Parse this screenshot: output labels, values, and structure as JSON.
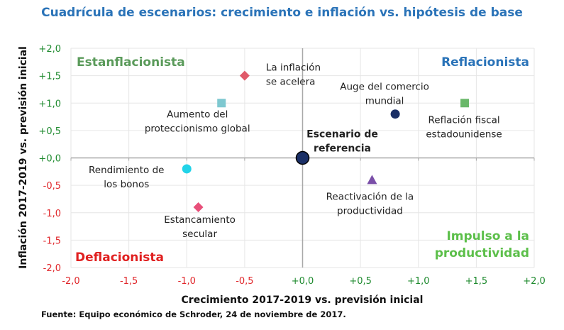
{
  "title": "Cuadrícula de escenarios: crecimiento e inflación vs. hipótesis de base",
  "source": "Fuente: Equipo económico de Schroder, 24 de noviembre de 2017.",
  "colors": {
    "title": "#2a73b8",
    "positive_tick": "#1e8a2e",
    "negative_tick": "#e0262a"
  },
  "chart_data": {
    "type": "scatter",
    "title": "Cuadrícula de escenarios: crecimiento e inflación vs. hipótesis de base",
    "xlabel": "Crecimiento 2017-2019 vs. previsión inicial",
    "ylabel": "Inflación 2017-2019 vs. previsión inicial",
    "xlim": [
      -2,
      2
    ],
    "ylim": [
      -2,
      2
    ],
    "grid": true,
    "xticks": [
      "-2,0",
      "-1,5",
      "-1,0",
      "-0,5",
      "+0,0",
      "+0,5",
      "+1,0",
      "+1,5",
      "+2,0"
    ],
    "yticks": [
      "+2,0",
      "+1,5",
      "+1,0",
      "+0,5",
      "+0,0",
      "-0,5",
      "-1,0",
      "-1,5",
      "-2,0"
    ],
    "quadrants": [
      {
        "label": "Estanflacionista",
        "color": "#5a9a5a",
        "pos": "top-left"
      },
      {
        "label": "Reflacionista",
        "color": "#2a73b8",
        "pos": "top-right"
      },
      {
        "label": "Deflacionista",
        "color": "#e02020",
        "pos": "bottom-left"
      },
      {
        "label": "Impulso a la productividad",
        "lines": [
          "Impulso a la",
          "productividad"
        ],
        "color": "#5cbf4a",
        "pos": "bottom-right"
      }
    ],
    "points": [
      {
        "lines": [
          "La inflación",
          "se acelera"
        ],
        "x": -0.5,
        "y": 1.5,
        "marker": "diamond",
        "color": "#e05a6a"
      },
      {
        "lines": [
          "Aumento del",
          "proteccionismo global"
        ],
        "x": -0.7,
        "y": 1.0,
        "marker": "square",
        "color": "#7ec8d0"
      },
      {
        "lines": [
          "Rendimiento de",
          "los bonos"
        ],
        "x": -1.0,
        "y": -0.2,
        "marker": "circle",
        "color": "#22d3e8"
      },
      {
        "lines": [
          "Estancamiento",
          "secular"
        ],
        "x": -0.9,
        "y": -0.9,
        "marker": "diamond",
        "color": "#e8507a"
      },
      {
        "lines": [
          "Escenario de",
          "referencia"
        ],
        "x": 0,
        "y": 0,
        "marker": "big-circle",
        "color": "#1a2f66",
        "bold": true
      },
      {
        "lines": [
          "Auge del comercio",
          "mundial"
        ],
        "x": 0.8,
        "y": 0.8,
        "marker": "circle",
        "color": "#1a2f66"
      },
      {
        "lines": [
          "Reflación fiscal",
          "estadounidense"
        ],
        "x": 1.4,
        "y": 1.0,
        "marker": "square",
        "color": "#6ab86a"
      },
      {
        "lines": [
          "Reactivación de la",
          "productividad"
        ],
        "x": 0.6,
        "y": -0.4,
        "marker": "triangle",
        "color": "#7a4fa8"
      }
    ]
  }
}
